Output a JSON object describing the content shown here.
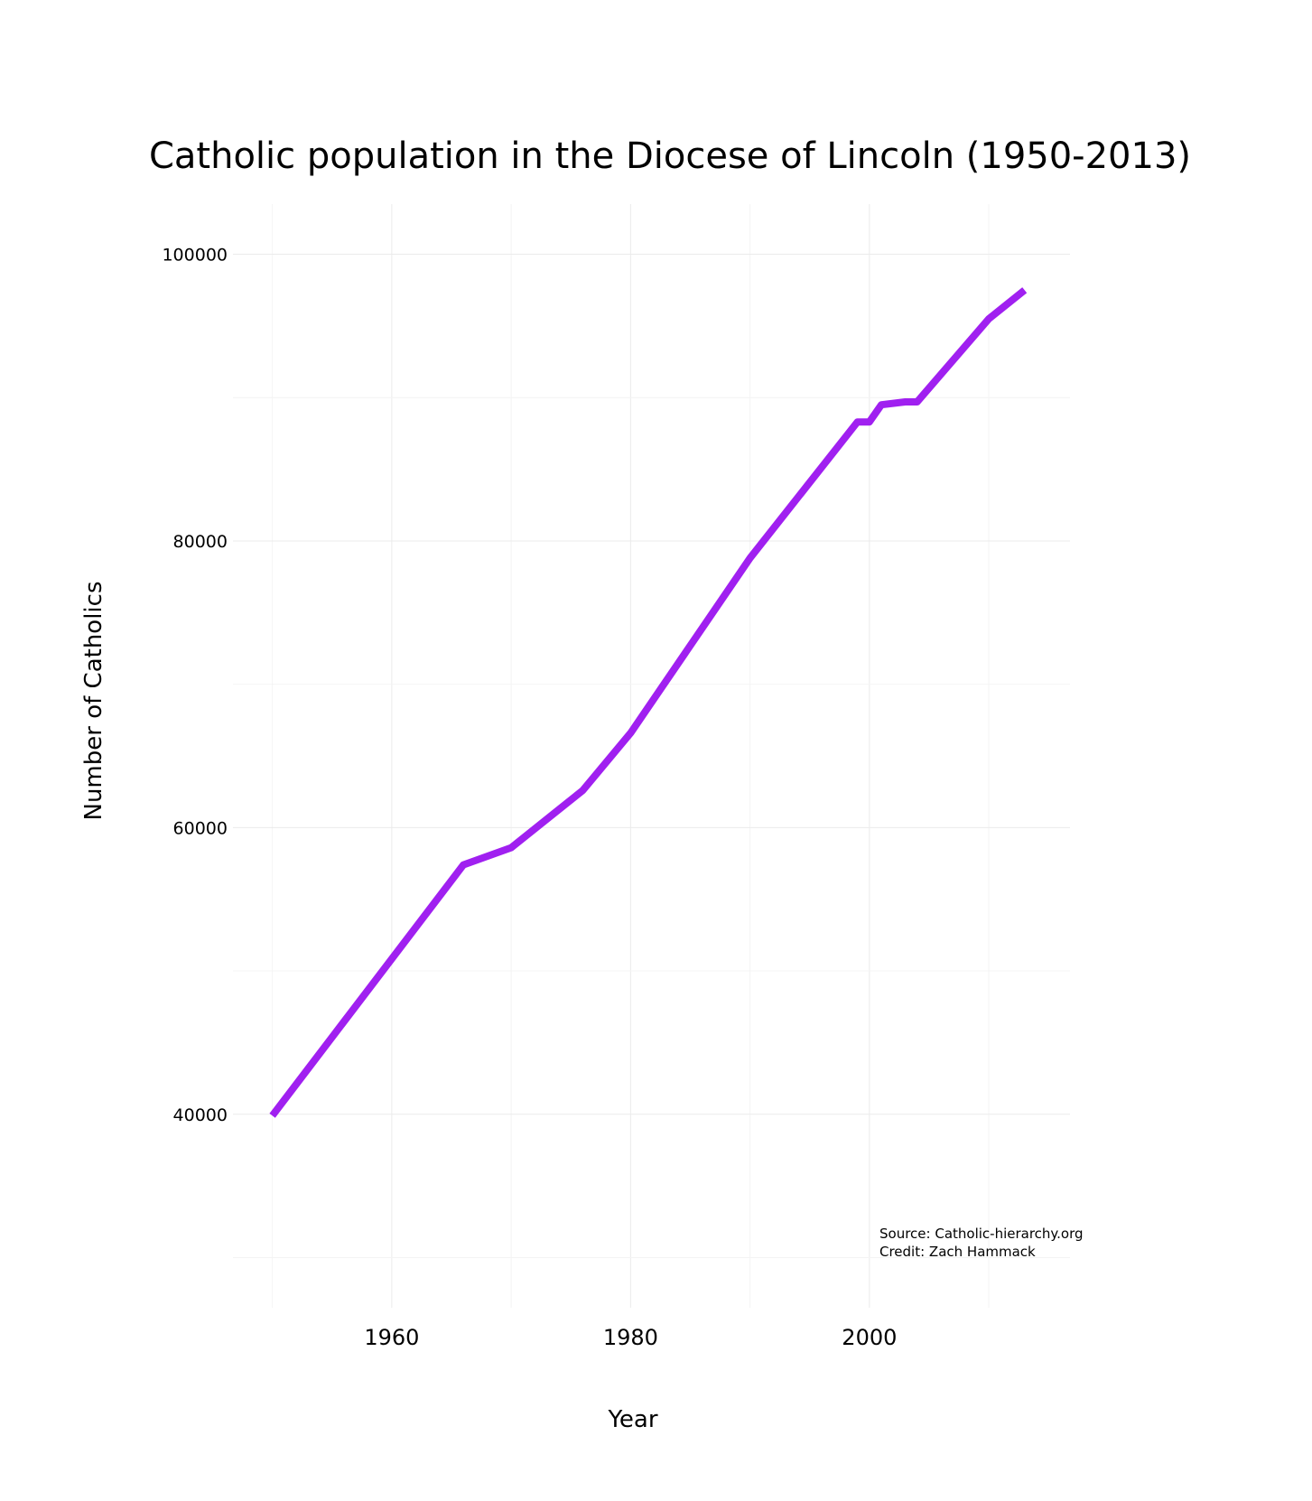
{
  "chart_data": {
    "type": "line",
    "title": "Catholic population in the Diocese of Lincoln (1950-2013)",
    "xlabel": "Year",
    "ylabel": "Number of Catholics",
    "x_ticks": [
      "1960",
      "1980",
      "2000"
    ],
    "y_ticks": [
      "40000",
      "60000",
      "80000",
      "100000"
    ],
    "xlim": [
      1946.7,
      2016.8
    ],
    "ylim": [
      26500,
      103500
    ],
    "grid": true,
    "legend": "none",
    "line_color": "#A020F0",
    "series": [
      {
        "x": [
          1950,
          1966,
          1970,
          1976,
          1980,
          1990,
          1999,
          2000,
          2001,
          2003,
          2004,
          2010,
          2013
        ],
        "values": [
          39900,
          57400,
          58600,
          62600,
          66600,
          78800,
          88300,
          88300,
          89500,
          89700,
          89700,
          95500,
          97500
        ]
      }
    ],
    "annotations": [
      "Source: Catholic-hierarchy.org",
      "Credit: Zach Hammack"
    ]
  }
}
